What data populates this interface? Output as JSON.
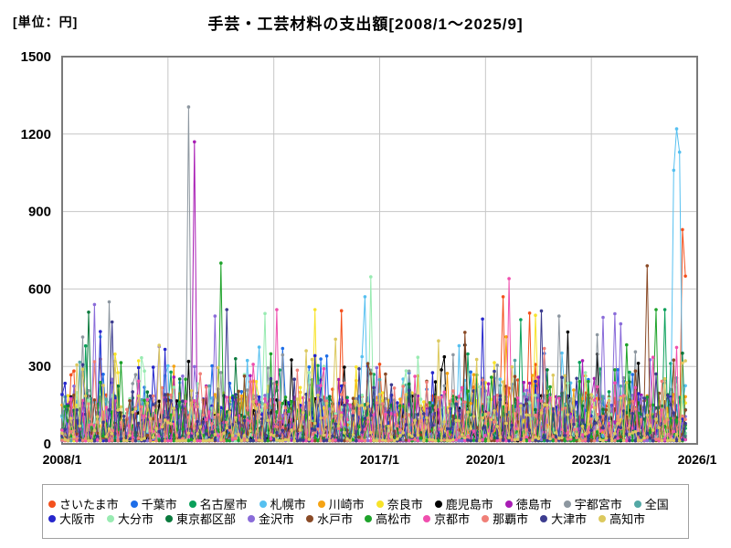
{
  "page": {
    "unit_label": "[単位：円]",
    "title": "手芸・工芸材料の支出額[2008/1～2025/9]"
  },
  "chart_data": {
    "type": "line",
    "title": "手芸・工芸材料の支出額[2008/1～2025/9]",
    "unit_label": "[単位：円]",
    "y_unit": "円",
    "x_start": "2008/1",
    "x_data_end": "2025/9",
    "x_axis_end": "2026/1",
    "months_total": 213,
    "xticks": [
      "2008/1",
      "2011/1",
      "2014/1",
      "2017/1",
      "2020/1",
      "2023/1",
      "2026/1"
    ],
    "yticks": [
      "0",
      "300",
      "600",
      "900",
      "1200",
      "1500"
    ],
    "ylim": [
      0,
      1500
    ],
    "grid": true,
    "legend_position": "bottom",
    "legend_rows": [
      10,
      10
    ],
    "series": [
      {
        "name": "さいたま市",
        "color": "#F4511E"
      },
      {
        "name": "千葉市",
        "color": "#1E6EE8"
      },
      {
        "name": "名古屋市",
        "color": "#0AA05A"
      },
      {
        "name": "札幌市",
        "color": "#56C0F0"
      },
      {
        "name": "川崎市",
        "color": "#F5A313"
      },
      {
        "name": "奈良市",
        "color": "#F7E32A"
      },
      {
        "name": "鹿児島市",
        "color": "#000000"
      },
      {
        "name": "徳島市",
        "color": "#A81CB4"
      },
      {
        "name": "宇都宮市",
        "color": "#8D97A0"
      },
      {
        "name": "全国",
        "color": "#53A8A5"
      },
      {
        "name": "大阪市",
        "color": "#2626CC"
      },
      {
        "name": "大分市",
        "color": "#99EBB2"
      },
      {
        "name": "東京都区部",
        "color": "#0A7A3D"
      },
      {
        "name": "金沢市",
        "color": "#8A6CD9"
      },
      {
        "name": "水戸市",
        "color": "#8A4A26"
      },
      {
        "name": "高松市",
        "color": "#1EA32A"
      },
      {
        "name": "京都市",
        "color": "#F04FAE"
      },
      {
        "name": "那覇市",
        "color": "#F08078"
      },
      {
        "name": "大津市",
        "color": "#3C3C8F"
      },
      {
        "name": "高知市",
        "color": "#DCC95E"
      }
    ],
    "baseline_description": "Dense monthly noise: all 20 series fluctuate mostly between 0 and 250 yen, with frequent 300-550 yen spikes throughout 2008/1-2025/9.",
    "notable_points": [
      {
        "series": "東京都区部",
        "month": "2008/10",
        "value": 510
      },
      {
        "series": "金沢市",
        "month": "2008/12",
        "value": 540
      },
      {
        "series": "大阪市",
        "month": "2009/2",
        "value": 435
      },
      {
        "series": "宇都宮市",
        "month": "2009/5",
        "value": 550
      },
      {
        "series": "宇都宮市",
        "month": "2011/8",
        "value": 1305
      },
      {
        "series": "徳島市",
        "month": "2011/10",
        "value": 1170
      },
      {
        "series": "金沢市",
        "month": "2012/5",
        "value": 495
      },
      {
        "series": "高松市",
        "month": "2012/7",
        "value": 700
      },
      {
        "series": "大分市",
        "month": "2013/10",
        "value": 505
      },
      {
        "series": "京都市",
        "month": "2014/2",
        "value": 520
      },
      {
        "series": "奈良市",
        "month": "2015/3",
        "value": 520
      },
      {
        "series": "札幌市",
        "month": "2016/8",
        "value": 570
      },
      {
        "series": "大分市",
        "month": "2016/10",
        "value": 647
      },
      {
        "series": "さいたま市",
        "month": "2020/7",
        "value": 570
      },
      {
        "series": "京都市",
        "month": "2020/9",
        "value": 640
      },
      {
        "series": "大津市",
        "month": "2021/8",
        "value": 515
      },
      {
        "series": "宇都宮市",
        "month": "2022/2",
        "value": 495
      },
      {
        "series": "金沢市",
        "month": "2023/5",
        "value": 490
      },
      {
        "series": "金沢市",
        "month": "2023/11",
        "value": 465
      },
      {
        "series": "水戸市",
        "month": "2024/8",
        "value": 690
      },
      {
        "series": "札幌市",
        "month": "2025/5",
        "value": 1060
      },
      {
        "series": "札幌市",
        "month": "2025/6",
        "value": 1220
      },
      {
        "series": "札幌市",
        "month": "2025/7",
        "value": 1130
      },
      {
        "series": "さいたま市",
        "month": "2025/8",
        "value": 830
      },
      {
        "series": "さいたま市",
        "month": "2025/9",
        "value": 650
      }
    ],
    "render": {
      "noise_seed": 42,
      "noise": {
        "base_min": 12,
        "body": 180,
        "bump_prob": 0.1,
        "bump_min": 70,
        "bump_max": 230,
        "spike_prob": 0.018,
        "spike_min": 120,
        "spike_max": 360,
        "cap": 520
      }
    }
  }
}
